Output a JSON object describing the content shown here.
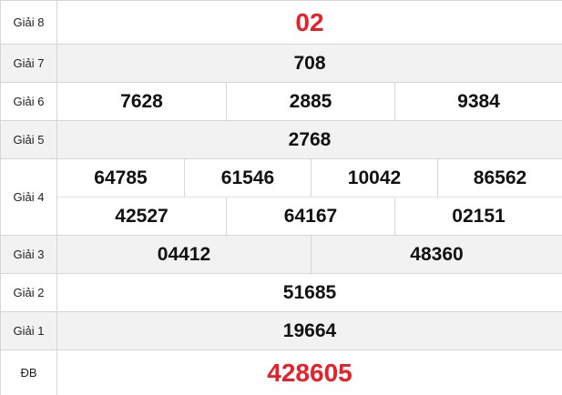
{
  "colors": {
    "special": "#e8202a",
    "alt_row": "#f2f2f2"
  },
  "prizes": {
    "g8": {
      "label": "Giải 8",
      "numbers": [
        "02"
      ]
    },
    "g7": {
      "label": "Giải 7",
      "numbers": [
        "708"
      ]
    },
    "g6": {
      "label": "Giải 6",
      "numbers": [
        "7628",
        "2885",
        "9384"
      ]
    },
    "g5": {
      "label": "Giải 5",
      "numbers": [
        "2768"
      ]
    },
    "g4": {
      "label": "Giải 4",
      "numbers": [
        "64785",
        "61546",
        "10042",
        "86562",
        "42527",
        "64167",
        "02151"
      ]
    },
    "g3": {
      "label": "Giải 3",
      "numbers": [
        "04412",
        "48360"
      ]
    },
    "g2": {
      "label": "Giải 2",
      "numbers": [
        "51685"
      ]
    },
    "g1": {
      "label": "Giải 1",
      "numbers": [
        "19664"
      ]
    },
    "db": {
      "label": "ĐB",
      "numbers": [
        "428605"
      ]
    }
  }
}
